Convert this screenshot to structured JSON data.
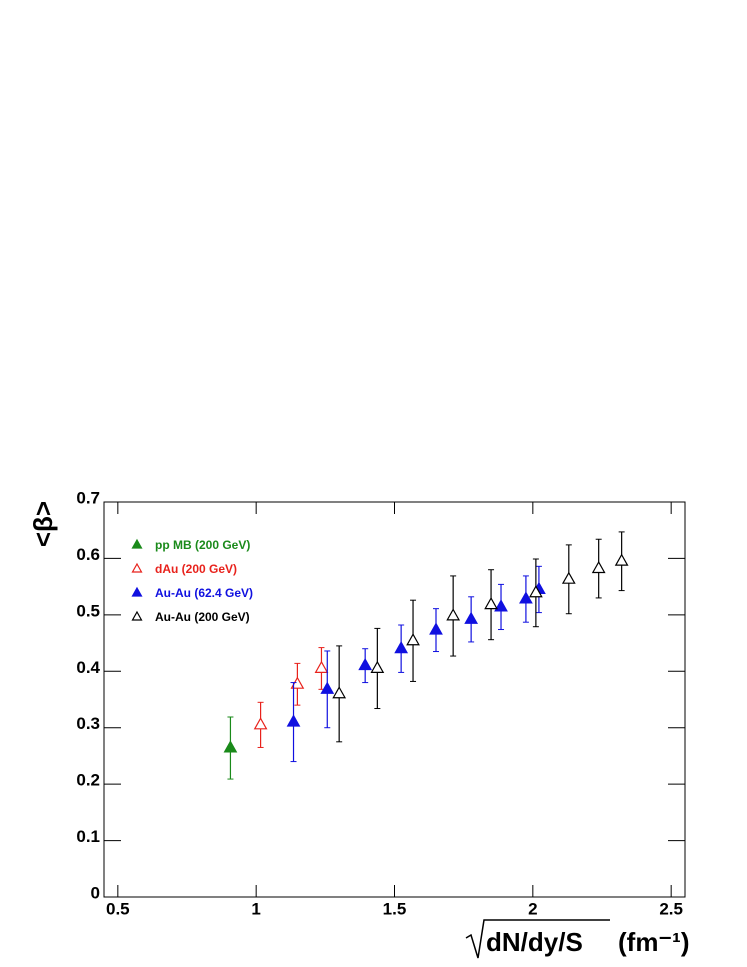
{
  "chart_data": {
    "type": "scatter",
    "xlabel": "dN/dy/S",
    "xunit": "(fm⁻¹)",
    "ylabel": "<β>",
    "xlim": [
      0.45,
      2.55
    ],
    "ylim": [
      0,
      0.7
    ],
    "xticks": [
      0.5,
      1,
      1.5,
      2,
      2.5
    ],
    "yticks": [
      0,
      0.1,
      0.2,
      0.3,
      0.4,
      0.5,
      0.6,
      0.7
    ],
    "legend": "top-left",
    "series": [
      {
        "name": "pp MB (200 GeV)",
        "color": "#1a8a1a",
        "marker": "filled-triangle",
        "x": [
          0.907
        ],
        "values": [
          0.264
        ],
        "errors": [
          0.055
        ]
      },
      {
        "name": "dAu (200 GeV)",
        "color": "#e8221c",
        "marker": "open-triangle",
        "x": [
          1.016,
          1.149,
          1.236
        ],
        "values": [
          0.305,
          0.377,
          0.405
        ],
        "errors": [
          0.04,
          0.037,
          0.037
        ]
      },
      {
        "name": "Au-Au (62.4 GeV)",
        "color": "#1010e0",
        "marker": "filled-triangle",
        "x": [
          1.135,
          1.257,
          1.394,
          1.524,
          1.65,
          1.777,
          1.885,
          1.975,
          2.022
        ],
        "values": [
          0.31,
          0.368,
          0.41,
          0.44,
          0.473,
          0.492,
          0.514,
          0.528,
          0.545
        ],
        "errors": [
          0.07,
          0.068,
          0.03,
          0.042,
          0.038,
          0.04,
          0.04,
          0.041,
          0.041
        ]
      },
      {
        "name": "Au-Au (200 GeV)",
        "color": "#000000",
        "marker": "open-triangle",
        "x": [
          1.3,
          1.438,
          1.567,
          1.712,
          1.849,
          2.011,
          2.13,
          2.238,
          2.321
        ],
        "values": [
          0.36,
          0.405,
          0.454,
          0.498,
          0.518,
          0.539,
          0.563,
          0.582,
          0.595
        ],
        "errors": [
          0.085,
          0.071,
          0.072,
          0.071,
          0.062,
          0.06,
          0.061,
          0.052,
          0.052
        ]
      }
    ]
  }
}
